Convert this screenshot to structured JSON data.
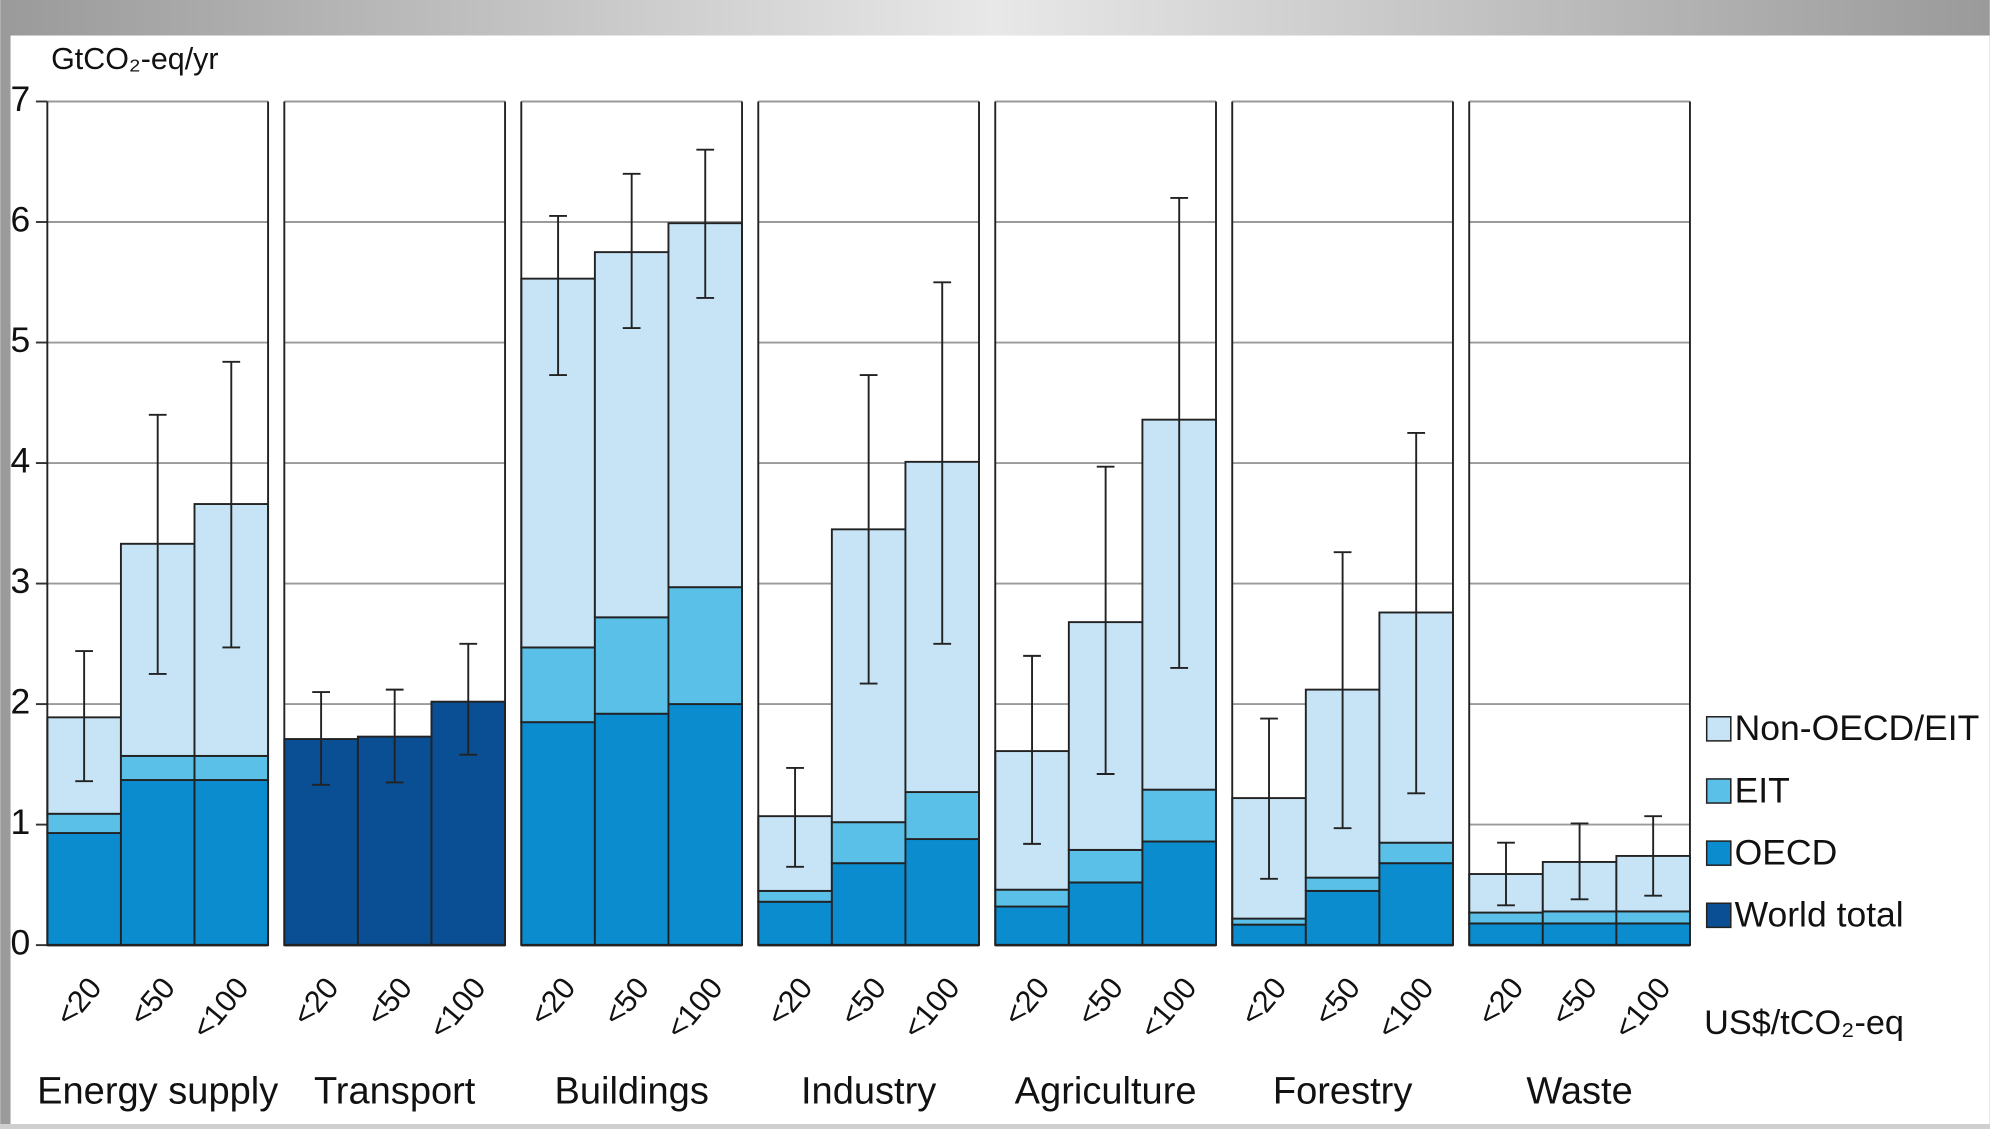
{
  "chart_data": {
    "type": "bar",
    "y_label": "GtCO₂-eq/yr",
    "x_label": "US$/tCO₂-eq",
    "groups": [
      "Energy supply",
      "Transport",
      "Buildings",
      "Industry",
      "Agriculture",
      "Forestry",
      "Waste"
    ],
    "categories": [
      "<20",
      "<50",
      "<100"
    ],
    "ylim": [
      0,
      7
    ],
    "yticks": [
      0,
      1,
      2,
      3,
      4,
      5,
      6,
      7
    ],
    "grid": true,
    "legend": "right",
    "series": [
      {
        "name": "Non-OECD/EIT",
        "color": "#c6e4f5",
        "values": [
          [
            0.8,
            1.76,
            2.09
          ],
          [
            null,
            null,
            null
          ],
          [
            3.06,
            3.03,
            3.02
          ],
          [
            0.62,
            2.43,
            2.74
          ],
          [
            1.15,
            1.89,
            3.07
          ],
          [
            1.0,
            1.56,
            1.91
          ],
          [
            0.32,
            0.41,
            0.46
          ]
        ]
      },
      {
        "name": "EIT",
        "color": "#5bc0e8",
        "values": [
          [
            0.16,
            0.2,
            0.2
          ],
          [
            null,
            null,
            null
          ],
          [
            0.62,
            0.8,
            0.97
          ],
          [
            0.09,
            0.34,
            0.39
          ],
          [
            0.14,
            0.27,
            0.43
          ],
          [
            0.05,
            0.11,
            0.17
          ],
          [
            0.09,
            0.1,
            0.1
          ]
        ]
      },
      {
        "name": "OECD",
        "color": "#0a8ccf",
        "values": [
          [
            0.93,
            1.37,
            1.37
          ],
          [
            null,
            null,
            null
          ],
          [
            1.85,
            1.92,
            2.0
          ],
          [
            0.36,
            0.68,
            0.88
          ],
          [
            0.32,
            0.52,
            0.86
          ],
          [
            0.17,
            0.45,
            0.68
          ],
          [
            0.18,
            0.18,
            0.18
          ]
        ]
      },
      {
        "name": "World total",
        "color": "#0a4f93",
        "values": [
          [
            null,
            null,
            null
          ],
          [
            1.71,
            1.73,
            2.02
          ],
          [
            null,
            null,
            null
          ],
          [
            null,
            null,
            null
          ],
          [
            null,
            null,
            null
          ],
          [
            null,
            null,
            null
          ],
          [
            null,
            null,
            null
          ]
        ]
      }
    ],
    "error_low": [
      [
        1.36,
        2.25,
        2.47
      ],
      [
        1.33,
        1.35,
        1.58
      ],
      [
        4.73,
        5.12,
        5.37
      ],
      [
        0.65,
        2.17,
        2.5
      ],
      [
        0.84,
        1.42,
        2.3
      ],
      [
        0.55,
        0.97,
        1.26
      ],
      [
        0.33,
        0.38,
        0.41
      ]
    ],
    "error_high": [
      [
        2.44,
        4.4,
        4.84
      ],
      [
        2.1,
        2.12,
        2.5
      ],
      [
        6.05,
        6.4,
        6.6
      ],
      [
        1.47,
        4.73,
        5.5
      ],
      [
        2.4,
        3.97,
        6.2
      ],
      [
        1.88,
        3.26,
        4.25
      ],
      [
        0.85,
        1.01,
        1.07
      ]
    ]
  }
}
